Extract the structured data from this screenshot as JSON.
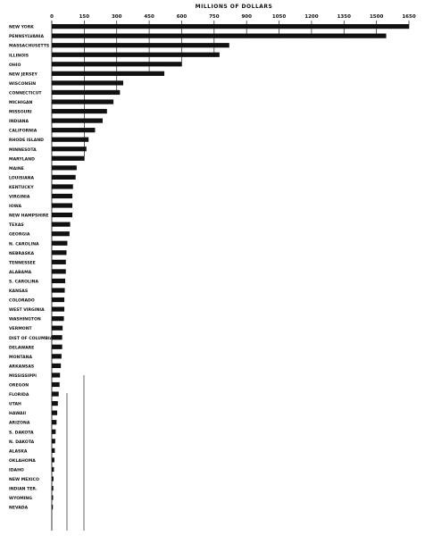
{
  "chart_data": {
    "type": "bar",
    "orientation": "horizontal",
    "title": "",
    "xlabel": "MILLIONS OF DOLLARS",
    "ylabel": "",
    "xlim": [
      0,
      1650
    ],
    "xticks": [
      0,
      150,
      300,
      450,
      600,
      750,
      900,
      1050,
      1200,
      1350,
      1500,
      1650
    ],
    "xtick_labels": [
      "0",
      "150",
      "300",
      "450",
      "600",
      "750",
      "900",
      "1050",
      "1200",
      "1350",
      "1500",
      "1650"
    ],
    "x_axis_position": "top",
    "grid": "vertical lines at each tick, of descending length",
    "categories": [
      "NEW YORK",
      "PENNSYLVANIA",
      "MASSACHUSETTS",
      "ILLINOIS",
      "OHIO",
      "NEW JERSEY",
      "WISCONSIN",
      "CONNECTICUT",
      "MICHIGAN",
      "MISSOURI",
      "INDIANA",
      "CALIFORNIA",
      "RHODE ISLAND",
      "MINNESOTA",
      "MARYLAND",
      "MAINE",
      "LOUISIANA",
      "KENTUCKY",
      "VIRGINIA",
      "IOWA",
      "NEW HAMPSHIRE",
      "TEXAS",
      "GEORGIA",
      "N. CAROLINA",
      "NEBRASKA",
      "TENNESSEE",
      "ALABAMA",
      "S. CAROLINA",
      "KANSAS",
      "COLORADO",
      "WEST VIRGINIA",
      "WASHINGTON",
      "VERMONT",
      "DIST OF COLUMBIA",
      "DELAWARE",
      "MONTANA",
      "ARKANSAS",
      "MISSISSIPPI",
      "OREGON",
      "FLORIDA",
      "UTAH",
      "HAWAII",
      "ARIZONA",
      "S. DAKOTA",
      "N. DAKOTA",
      "ALASKA",
      "OKLAHOMA",
      "IDAHO",
      "NEW MEXICO",
      "INDIAN TER.",
      "WYOMING",
      "NEVADA"
    ],
    "values": [
      1650,
      1545,
      820,
      775,
      600,
      520,
      330,
      315,
      285,
      255,
      235,
      200,
      170,
      160,
      150,
      115,
      110,
      98,
      95,
      95,
      95,
      85,
      82,
      72,
      68,
      65,
      65,
      62,
      60,
      58,
      58,
      56,
      50,
      48,
      48,
      45,
      42,
      38,
      36,
      32,
      28,
      25,
      22,
      18,
      16,
      14,
      12,
      10,
      8,
      7,
      6,
      5
    ]
  }
}
